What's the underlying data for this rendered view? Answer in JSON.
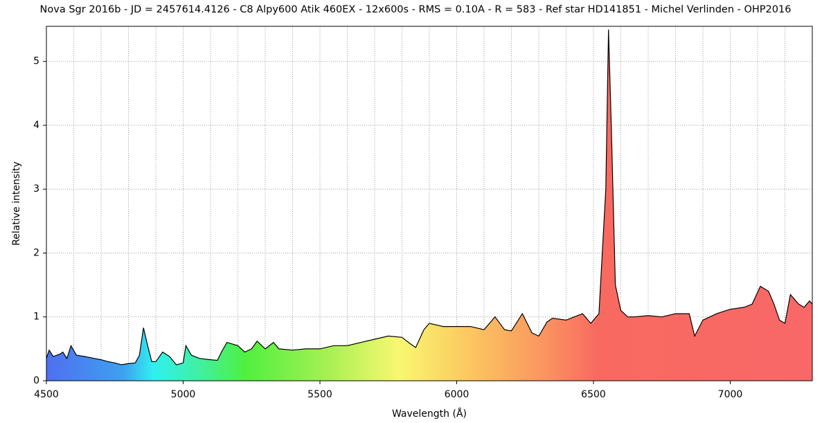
{
  "chart_data": {
    "type": "area",
    "title": "Nova Sgr 2016b - JD = 2457614.4126 - C8 Alpy600 Atik 460EX - 12x600s - RMS = 0.10A - R = 583 - Ref star HD141851 - Michel Verlinden - OHP2016",
    "x_label": "Wavelength (Å)",
    "y_label": "Relative intensity",
    "x": [
      4500,
      4510,
      4525,
      4550,
      4560,
      4575,
      4590,
      4610,
      4640,
      4675,
      4700,
      4725,
      4750,
      4775,
      4800,
      4825,
      4840,
      4855,
      4870,
      4885,
      4900,
      4925,
      4950,
      4975,
      5000,
      5010,
      5030,
      5060,
      5100,
      5125,
      5140,
      5160,
      5200,
      5225,
      5250,
      5270,
      5300,
      5330,
      5350,
      5400,
      5450,
      5500,
      5550,
      5600,
      5650,
      5700,
      5750,
      5800,
      5830,
      5850,
      5880,
      5900,
      5950,
      6000,
      6050,
      6100,
      6140,
      6175,
      6200,
      6240,
      6275,
      6300,
      6330,
      6350,
      6400,
      6430,
      6460,
      6490,
      6520,
      6545,
      6555,
      6565,
      6580,
      6600,
      6625,
      6650,
      6700,
      6750,
      6800,
      6850,
      6870,
      6900,
      6950,
      7000,
      7050,
      7080,
      7110,
      7140,
      7160,
      7180,
      7200,
      7220,
      7250,
      7270,
      7290,
      7300
    ],
    "values": [
      0.35,
      0.48,
      0.38,
      0.42,
      0.45,
      0.35,
      0.55,
      0.4,
      0.38,
      0.35,
      0.33,
      0.3,
      0.28,
      0.25,
      0.27,
      0.28,
      0.4,
      0.83,
      0.55,
      0.3,
      0.3,
      0.45,
      0.38,
      0.25,
      0.28,
      0.55,
      0.4,
      0.35,
      0.33,
      0.32,
      0.45,
      0.6,
      0.55,
      0.45,
      0.5,
      0.62,
      0.5,
      0.6,
      0.5,
      0.48,
      0.5,
      0.5,
      0.55,
      0.55,
      0.6,
      0.65,
      0.7,
      0.68,
      0.58,
      0.52,
      0.8,
      0.9,
      0.85,
      0.85,
      0.85,
      0.8,
      1.0,
      0.8,
      0.78,
      1.05,
      0.75,
      0.7,
      0.92,
      0.98,
      0.95,
      1.0,
      1.05,
      0.9,
      1.05,
      3.0,
      5.5,
      4.0,
      1.5,
      1.1,
      1.0,
      1.0,
      1.02,
      1.0,
      1.05,
      1.05,
      0.7,
      0.95,
      1.05,
      1.12,
      1.15,
      1.2,
      1.48,
      1.4,
      1.2,
      0.95,
      0.9,
      1.35,
      1.2,
      1.15,
      1.25,
      1.2
    ],
    "color": "#000000",
    "xlim": [
      4500,
      7300
    ],
    "ylim": [
      0,
      5.55
    ],
    "xticks": [
      4500,
      5000,
      5500,
      6000,
      6500,
      7000
    ],
    "yticks": [
      0,
      1,
      2,
      3,
      4,
      5
    ],
    "xgrid": [
      4600,
      4700,
      4800,
      4900,
      5000,
      5100,
      5200,
      5300,
      5400,
      5500,
      5600,
      5700,
      5800,
      5900,
      6000,
      6100,
      6200,
      6300,
      6400,
      6500,
      6600,
      6700,
      6800,
      6900,
      7000,
      7100,
      7200
    ],
    "grid": true
  }
}
